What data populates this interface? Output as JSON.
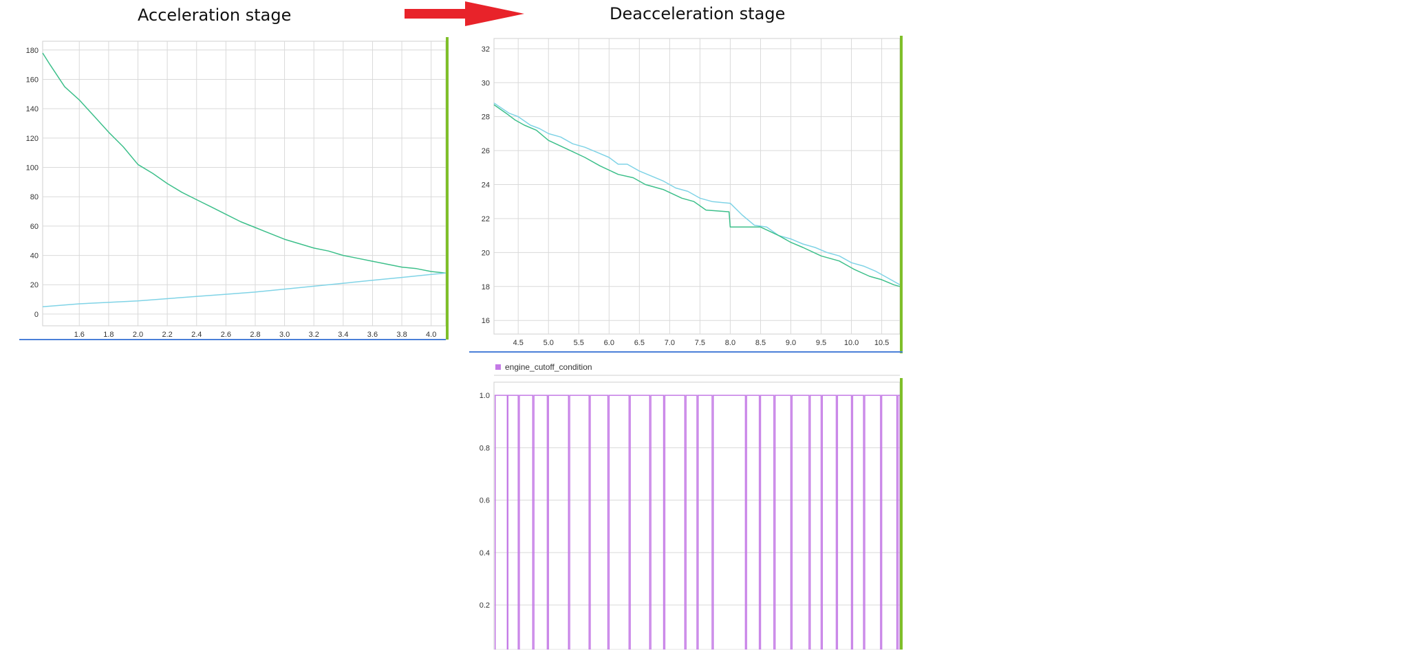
{
  "labels": {
    "left_title": "Acceleration stage",
    "right_title": "Deacceleration stage"
  },
  "colors": {
    "series_green": "#3cbf8a",
    "series_cyan": "#7fd3e6",
    "series_magenta": "#c47ae6",
    "cursor_green": "#7fbf2a",
    "axis_blue": "#4a7fd8",
    "grid": "#d9d9d9",
    "arrow_red": "#e8232a"
  },
  "chart_data": [
    {
      "type": "line",
      "id": "acceleration",
      "xlim": [
        1.35,
        4.1
      ],
      "ylim": [
        -8,
        186
      ],
      "xticks": [
        1.6,
        1.8,
        2.0,
        2.2,
        2.4,
        2.6,
        2.8,
        3.0,
        3.2,
        3.4,
        3.6,
        3.8,
        4.0
      ],
      "yticks": [
        0,
        20,
        40,
        60,
        80,
        100,
        120,
        140,
        160,
        180
      ],
      "grid": true,
      "series": [
        {
          "color": "green",
          "x": [
            1.35,
            1.4,
            1.5,
            1.6,
            1.7,
            1.8,
            1.9,
            2.0,
            2.1,
            2.2,
            2.3,
            2.4,
            2.5,
            2.6,
            2.7,
            2.8,
            2.9,
            3.0,
            3.1,
            3.2,
            3.3,
            3.4,
            3.5,
            3.6,
            3.7,
            3.8,
            3.9,
            4.0,
            4.1
          ],
          "y": [
            178,
            170,
            155,
            146,
            135,
            124,
            114,
            102,
            96,
            89,
            83,
            78,
            73,
            68,
            63,
            59,
            55,
            51,
            48,
            45,
            43,
            40,
            38,
            36,
            34,
            32,
            31,
            29,
            28
          ]
        },
        {
          "color": "cyan",
          "x": [
            1.35,
            1.6,
            1.8,
            2.0,
            2.2,
            2.4,
            2.6,
            2.8,
            3.0,
            3.2,
            3.4,
            3.6,
            3.8,
            4.0,
            4.1
          ],
          "y": [
            5,
            7,
            8,
            9,
            10.5,
            12,
            13.5,
            15,
            17,
            19,
            21,
            23,
            25,
            27,
            28
          ]
        }
      ]
    },
    {
      "type": "line",
      "id": "deacceleration",
      "xlim": [
        4.1,
        10.8
      ],
      "ylim": [
        15.2,
        32.6
      ],
      "xticks": [
        4.5,
        5.0,
        5.5,
        6.0,
        6.5,
        7.0,
        7.5,
        8.0,
        8.5,
        9.0,
        9.5,
        10.0,
        10.5
      ],
      "yticks": [
        16,
        18,
        20,
        22,
        24,
        26,
        28,
        30,
        32
      ],
      "grid": true,
      "series": [
        {
          "color": "cyan",
          "x": [
            4.1,
            4.35,
            4.5,
            4.7,
            4.85,
            5.0,
            5.2,
            5.4,
            5.6,
            5.8,
            6.0,
            6.15,
            6.3,
            6.5,
            6.7,
            6.9,
            7.1,
            7.3,
            7.5,
            7.7,
            8.0,
            8.2,
            8.4,
            8.6,
            8.8,
            9.0,
            9.2,
            9.4,
            9.6,
            9.8,
            10.0,
            10.2,
            10.4,
            10.6,
            10.8
          ],
          "y": [
            28.8,
            28.2,
            28.0,
            27.5,
            27.3,
            27.0,
            26.8,
            26.4,
            26.2,
            25.9,
            25.6,
            25.2,
            25.2,
            24.8,
            24.5,
            24.2,
            23.8,
            23.6,
            23.2,
            23.0,
            22.9,
            22.2,
            21.6,
            21.5,
            21.0,
            20.8,
            20.5,
            20.3,
            20.0,
            19.8,
            19.4,
            19.2,
            18.9,
            18.5,
            18.1
          ]
        },
        {
          "color": "green",
          "x": [
            4.1,
            4.3,
            4.45,
            4.6,
            4.8,
            5.0,
            5.3,
            5.6,
            5.85,
            6.15,
            6.4,
            6.6,
            6.9,
            7.2,
            7.4,
            7.6,
            7.98,
            8.0,
            8.5,
            8.8,
            9.0,
            9.2,
            9.5,
            9.8,
            10.05,
            10.3,
            10.5,
            10.7,
            10.8
          ],
          "y": [
            28.7,
            28.2,
            27.8,
            27.5,
            27.2,
            26.6,
            26.1,
            25.6,
            25.1,
            24.6,
            24.4,
            24.0,
            23.7,
            23.2,
            23.0,
            22.5,
            22.4,
            21.5,
            21.5,
            21.0,
            20.6,
            20.3,
            19.8,
            19.5,
            19.0,
            18.6,
            18.4,
            18.1,
            18.0
          ]
        }
      ]
    },
    {
      "type": "line",
      "id": "cutoff",
      "legend": [
        "engine_cutoff_condition"
      ],
      "legend_position": "top-left",
      "xlim": [
        4.1,
        10.8
      ],
      "ylim": [
        0.03,
        1.05
      ],
      "yticks": [
        0.2,
        0.4,
        0.6,
        0.8,
        1.0
      ],
      "grid": true,
      "series": [
        {
          "name": "engine_cutoff_condition",
          "color": "magenta",
          "pulses": [
            [
              4.12,
              4.32
            ],
            [
              4.33,
              4.5
            ],
            [
              4.52,
              4.74
            ],
            [
              4.76,
              4.98
            ],
            [
              5.0,
              5.33
            ],
            [
              5.35,
              5.67
            ],
            [
              5.69,
              5.98
            ],
            [
              6.0,
              6.33
            ],
            [
              6.35,
              6.67
            ],
            [
              6.69,
              6.9
            ],
            [
              6.92,
              7.25
            ],
            [
              7.27,
              7.45
            ],
            [
              7.47,
              7.7
            ],
            [
              7.72,
              8.25
            ],
            [
              8.27,
              8.48
            ],
            [
              8.5,
              8.72
            ],
            [
              8.74,
              9.0
            ],
            [
              9.02,
              9.3
            ],
            [
              9.32,
              9.5
            ],
            [
              9.52,
              9.75
            ],
            [
              9.77,
              10.0
            ],
            [
              10.02,
              10.2
            ],
            [
              10.22,
              10.48
            ],
            [
              10.5,
              10.75
            ],
            [
              10.77,
              10.8
            ]
          ]
        }
      ]
    }
  ]
}
